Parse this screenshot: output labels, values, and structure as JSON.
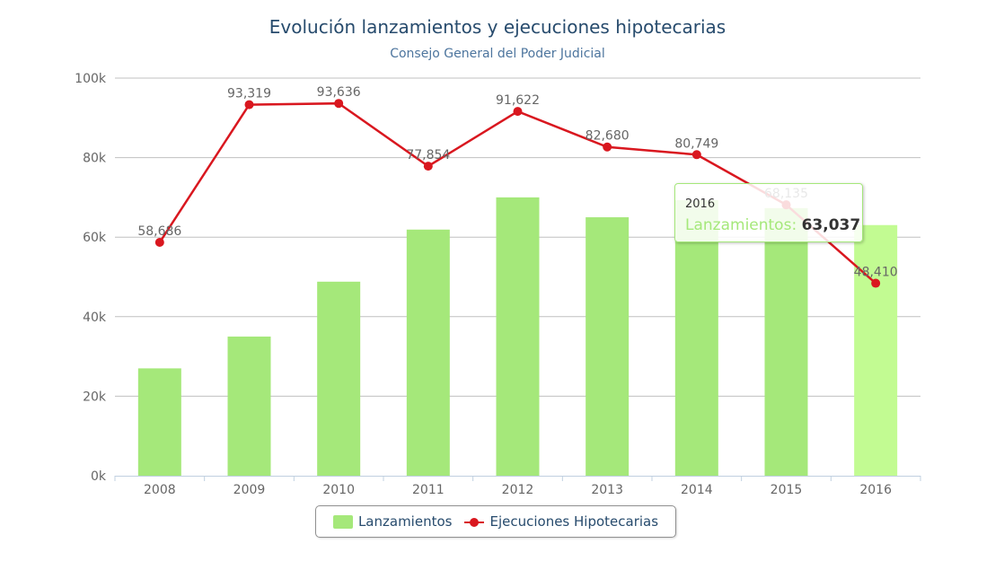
{
  "chart_data": {
    "type": "bar",
    "title": "Evolución lanzamientos y ejecuciones hipotecarias",
    "subtitle": "Consejo General del Poder Judicial",
    "categories": [
      "2008",
      "2009",
      "2010",
      "2011",
      "2012",
      "2013",
      "2014",
      "2015",
      "2016"
    ],
    "ylim": [
      0,
      100000
    ],
    "yticks": [
      "0k",
      "20k",
      "40k",
      "60k",
      "80k",
      "100k"
    ],
    "grid": true,
    "legend": "bottom",
    "series": [
      {
        "name": "Lanzamientos",
        "type": "bar",
        "color": "#a5e87a",
        "highlight_color": "#c2fb92",
        "values": [
          27000,
          35000,
          48800,
          61900,
          70000,
          65000,
          69300,
          67300,
          63037
        ]
      },
      {
        "name": "Ejecuciones Hipotecarias",
        "type": "line",
        "color": "#d9171f",
        "values": [
          58686,
          93319,
          93636,
          77854,
          91622,
          82680,
          80749,
          68135,
          48410
        ],
        "labels": [
          "58,686",
          "93,319",
          "93,636",
          "77,854",
          "91,622",
          "82,680",
          "80,749",
          "68,135",
          "48,410"
        ]
      }
    ],
    "tooltip": {
      "category": "2016",
      "series": "Lanzamientos: ",
      "value": "63,037"
    }
  }
}
